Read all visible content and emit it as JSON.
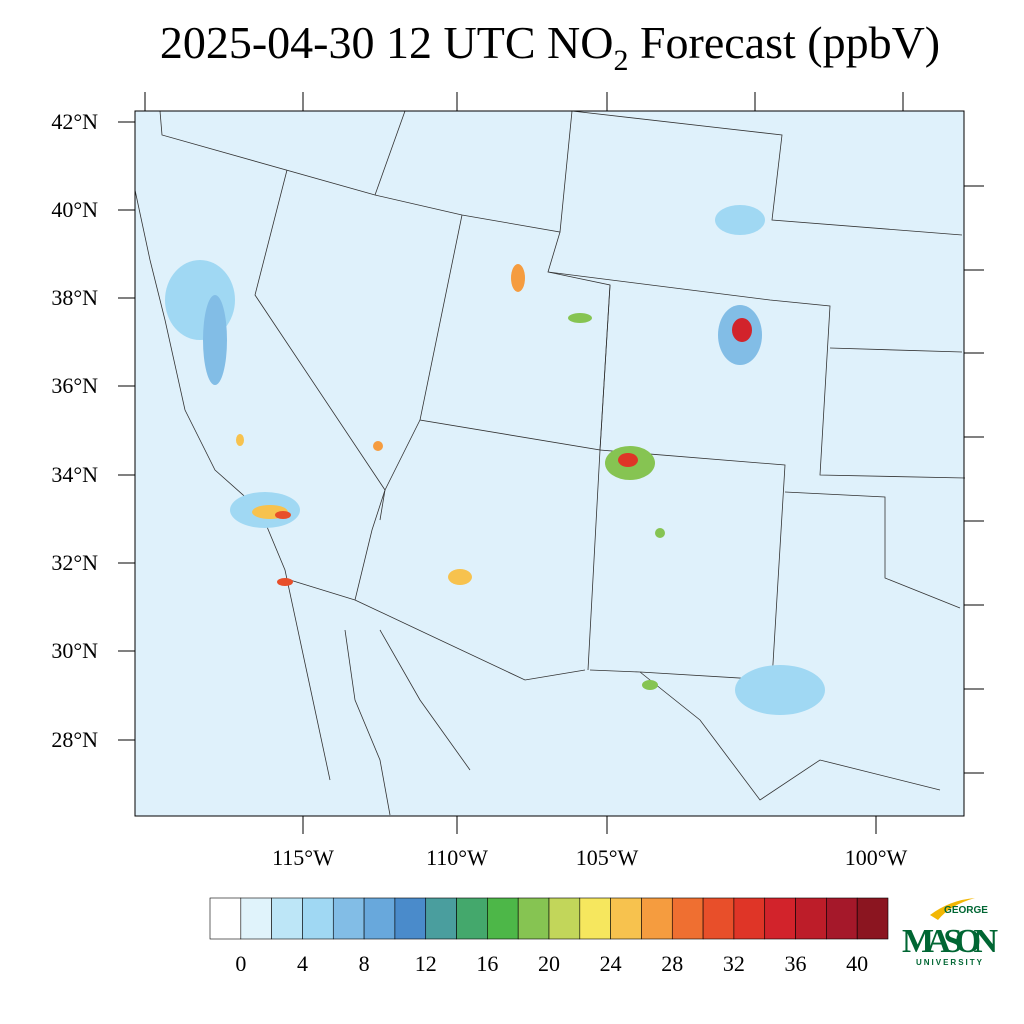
{
  "title": {
    "prefix": "2025-04-30 12 UTC NO",
    "subscript": "2",
    "suffix": " Forecast (ppbV)"
  },
  "map": {
    "lat_labels": [
      "42°N",
      "40°N",
      "38°N",
      "36°N",
      "34°N",
      "32°N",
      "30°N",
      "28°N"
    ],
    "lon_labels": [
      "115°W",
      "110°W",
      "105°W",
      "100°W"
    ]
  },
  "colorbar": {
    "colors": [
      "#ffffff",
      "#e0f3fb",
      "#bde6f7",
      "#a0d8f3",
      "#82bde6",
      "#68a8dc",
      "#4a8bcb",
      "#4a9e9e",
      "#44a86c",
      "#4db748",
      "#86c452",
      "#c2d65a",
      "#f6e75e",
      "#f7c24e",
      "#f59c3f",
      "#ef6f31",
      "#e84f2a",
      "#df3527",
      "#d2232b",
      "#bd1d29",
      "#a5182a",
      "#8b1520"
    ],
    "ticks": [
      0,
      4,
      8,
      12,
      16,
      20,
      24,
      28,
      32,
      36,
      40
    ]
  },
  "logo": {
    "top": "GEORGE",
    "main": "MASON",
    "bottom": "UNIVERSITY"
  }
}
